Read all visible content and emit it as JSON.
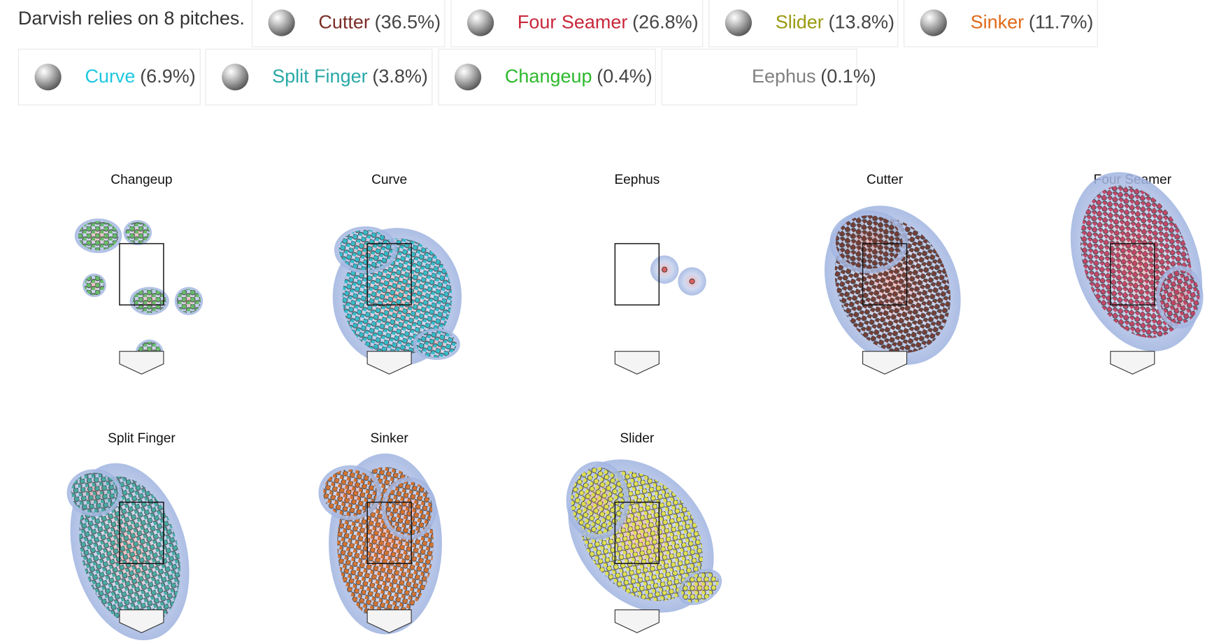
{
  "header": "Darvish relies on 8 pitches.",
  "pitches": [
    {
      "name": "Cutter",
      "share": "(36.5%)",
      "color": "#7b2d26"
    },
    {
      "name": "Four Seamer",
      "share": "(26.8%)",
      "color": "#c8283c"
    },
    {
      "name": "Slider",
      "share": "(13.8%)",
      "color": "#9a9a10"
    },
    {
      "name": "Sinker",
      "share": "(11.7%)",
      "color": "#e06a1a"
    },
    {
      "name": "Curve",
      "share": "(6.9%)",
      "color": "#1ec8e0"
    },
    {
      "name": "Split Finger",
      "share": "(3.8%)",
      "color": "#2aa8a8"
    },
    {
      "name": "Changeup",
      "share": "(0.4%)",
      "color": "#2db92d"
    },
    {
      "name": "Eephus",
      "share": "(0.1%)",
      "color": "#808080"
    }
  ],
  "panels": [
    {
      "title": "Changeup",
      "color": "#5cb85c"
    },
    {
      "title": "Curve",
      "color": "#26b8c4"
    },
    {
      "title": "Eephus",
      "color": "#e06060"
    },
    {
      "title": "Cutter",
      "color": "#6b2f24"
    },
    {
      "title": "Four Seamer",
      "color": "#c0395a"
    },
    {
      "title": "Split Finger",
      "color": "#3aa59a"
    },
    {
      "title": "Sinker",
      "color": "#d2691e"
    },
    {
      "title": "Slider",
      "color": "#e0e040"
    }
  ]
}
